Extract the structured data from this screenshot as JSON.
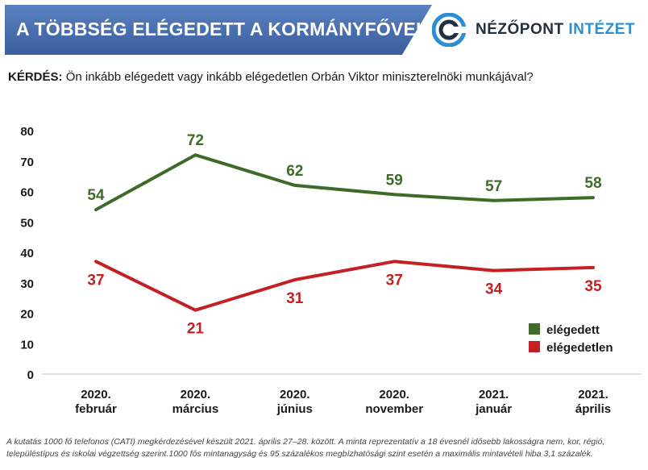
{
  "header": {
    "title": "A TÖBBSÉG ELÉGEDETT A KORMÁNYFŐVEL",
    "logo_part1": "NÉZŐPONT",
    "logo_part2": "INTÉZET",
    "logo_icon": "nezopont-logo-icon"
  },
  "question": {
    "label": "KÉRDÉS:",
    "text": "Ön inkább elégedett vagy inkább elégedetlen Orbán Viktor miniszterelnöki munkájával?"
  },
  "colors": {
    "satisfied": "#3f6b2a",
    "dissatisfied": "#c42024",
    "title_band": "#4a6fb0",
    "logo_accent": "#2e8fd0"
  },
  "chart_data": {
    "type": "line",
    "categories": [
      [
        "2020.",
        "február"
      ],
      [
        "2020.",
        "március"
      ],
      [
        "2020.",
        "június"
      ],
      [
        "2020.",
        "november"
      ],
      [
        "2021.",
        "január"
      ],
      [
        "2021.",
        "április"
      ]
    ],
    "series": [
      {
        "name": "elégedett",
        "values": [
          54,
          72,
          62,
          59,
          57,
          58
        ],
        "color": "#3f6b2a"
      },
      {
        "name": "elégedetlen",
        "values": [
          37,
          21,
          31,
          37,
          34,
          35
        ],
        "color": "#c42024"
      }
    ],
    "yticks": [
      0,
      10,
      20,
      30,
      40,
      50,
      60,
      70,
      80
    ],
    "ylim": [
      0,
      80
    ],
    "legend_position": "bottom-right",
    "grid": false
  },
  "footnote": {
    "line1": "A kutatás 1000 fő telefonos (CATI) megkérdezésével készült 2021. április 27–28. között. A minta reprezentatív a 18 évesnél idősebb lakosságra nem, kor, régió,",
    "line2": "településtípus és iskolai végzettség szerint.1000 fős mintanagyság és 95 százalékos megbízhatósági szint esetén a maximális mintavételi hiba 3,1 százalék."
  }
}
